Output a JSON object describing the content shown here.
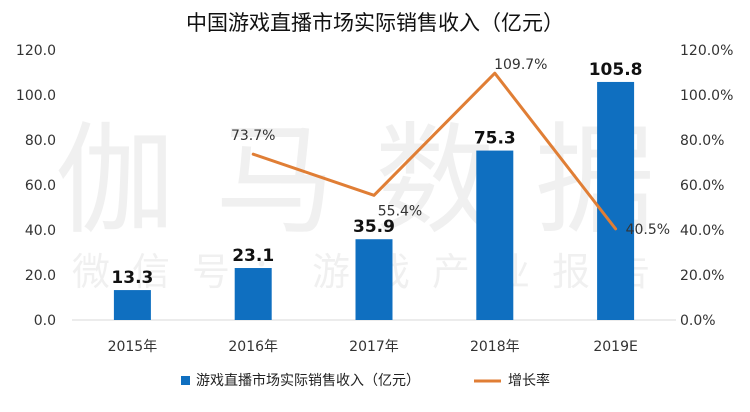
{
  "watermark": {
    "main": "伽马数据",
    "sub": "微信号：游戏产业报告"
  },
  "chart_data": {
    "type": "bar",
    "title": "中国游戏直播市场实际销售收入（亿元）",
    "categories": [
      "2015年",
      "2016年",
      "2017年",
      "2018年",
      "2019E"
    ],
    "series": [
      {
        "name": "游戏直播市场实际销售收入（亿元）",
        "type": "bar",
        "axis": "left",
        "values": [
          13.3,
          23.1,
          35.9,
          75.3,
          105.8
        ],
        "labels": [
          "13.3",
          "23.1",
          "35.9",
          "75.3",
          "105.8"
        ],
        "color": "#0F6FC0"
      },
      {
        "name": "增长率",
        "type": "line",
        "axis": "right",
        "values": [
          null,
          73.7,
          55.4,
          109.7,
          40.5
        ],
        "labels": [
          null,
          "73.7%",
          "55.4%",
          "109.7%",
          "40.5%"
        ],
        "color": "#E07E35"
      }
    ],
    "y_left": {
      "range": [
        0,
        120
      ],
      "ticks": [
        "0.0",
        "20.0",
        "40.0",
        "60.0",
        "80.0",
        "100.0",
        "120.0"
      ]
    },
    "y_right": {
      "range": [
        0,
        120
      ],
      "ticks": [
        "0.0%",
        "20.0%",
        "40.0%",
        "60.0%",
        "80.0%",
        "100.0%",
        "120.0%"
      ]
    },
    "grid": false,
    "legend_position": "bottom"
  }
}
